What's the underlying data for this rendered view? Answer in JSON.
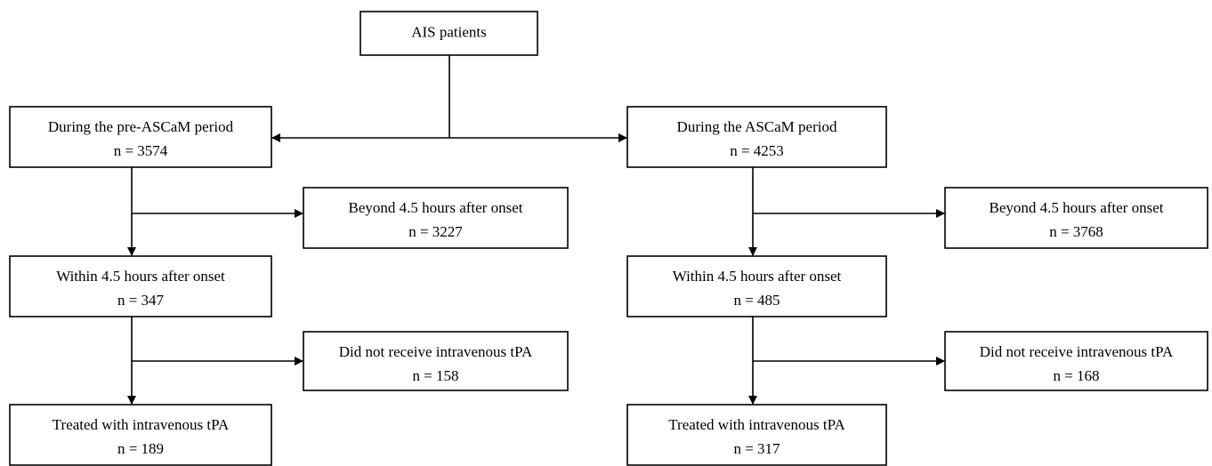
{
  "nodes": [
    {
      "label": "AIS patients"
    },
    {
      "label": "During the pre-ASCaM period",
      "count": "n = 3574"
    },
    {
      "label": "During the ASCaM period",
      "count": "n = 4253"
    },
    {
      "label": "Beyond 4.5 hours after onset",
      "count": "n = 3227"
    },
    {
      "label": "Within 4.5 hours after onset",
      "count": "n = 347"
    },
    {
      "label": "Did not receive intravenous tPA",
      "count": "n = 158"
    },
    {
      "label": "Treated with intravenous tPA",
      "count": "n = 189"
    },
    {
      "label": "Beyond 4.5 hours after onset",
      "count": "n = 3768"
    },
    {
      "label": "Within 4.5 hours after onset",
      "count": "n = 485"
    },
    {
      "label": "Did not receive intravenous tPA",
      "count": "n = 168"
    },
    {
      "label": "Treated with intravenous tPA",
      "count": "n = 317"
    }
  ]
}
